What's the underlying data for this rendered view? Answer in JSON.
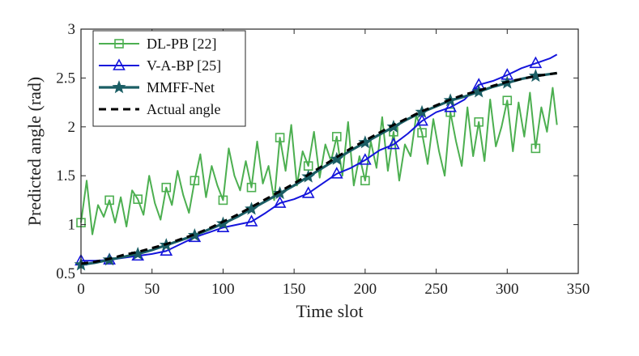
{
  "chart_data": {
    "type": "line",
    "title": "",
    "xlabel": "Time slot",
    "ylabel": "Predicted angle (rad)",
    "xlim": [
      0,
      350
    ],
    "ylim": [
      0.5,
      3
    ],
    "xticks": [
      0,
      50,
      100,
      150,
      200,
      250,
      300,
      350
    ],
    "yticks": [
      0.5,
      1,
      1.5,
      2,
      2.5,
      3
    ],
    "xtick_labels": [
      "0",
      "50",
      "100",
      "150",
      "200",
      "250",
      "300",
      "350"
    ],
    "ytick_labels": [
      "0.5",
      "1",
      "1.5",
      "2",
      "2.5",
      "3"
    ],
    "grid": false,
    "legend_position": "top-left",
    "series": [
      {
        "name": "DL-PB [22]",
        "color": "#4caf50",
        "marker": "square",
        "x": [
          0,
          4,
          8,
          12,
          16,
          20,
          24,
          28,
          32,
          36,
          40,
          44,
          48,
          52,
          56,
          60,
          64,
          68,
          72,
          76,
          80,
          84,
          88,
          92,
          96,
          100,
          104,
          108,
          112,
          116,
          120,
          124,
          128,
          132,
          136,
          140,
          144,
          148,
          152,
          156,
          160,
          164,
          168,
          172,
          176,
          180,
          184,
          188,
          192,
          196,
          200,
          204,
          208,
          212,
          216,
          220,
          224,
          228,
          232,
          236,
          240,
          244,
          248,
          252,
          256,
          260,
          264,
          268,
          272,
          276,
          280,
          284,
          288,
          292,
          296,
          300,
          304,
          308,
          312,
          316,
          320,
          324,
          328,
          332,
          335
        ],
        "values": [
          1.02,
          1.45,
          0.9,
          1.2,
          1.08,
          1.25,
          1.02,
          1.28,
          0.98,
          1.35,
          1.26,
          1.1,
          1.5,
          1.22,
          1.05,
          1.38,
          1.2,
          1.55,
          1.3,
          1.12,
          1.45,
          1.72,
          1.28,
          1.6,
          1.4,
          1.25,
          1.78,
          1.5,
          1.35,
          1.65,
          1.38,
          1.85,
          1.42,
          1.6,
          1.25,
          1.89,
          1.55,
          2.02,
          1.4,
          1.75,
          1.6,
          1.95,
          1.48,
          1.82,
          1.65,
          1.9,
          1.5,
          2.05,
          1.4,
          1.7,
          1.45,
          1.85,
          1.58,
          2.1,
          1.55,
          1.95,
          1.45,
          1.82,
          1.7,
          2.12,
          1.94,
          1.62,
          2.08,
          1.75,
          1.5,
          2.15,
          1.85,
          1.6,
          2.2,
          1.7,
          2.05,
          1.65,
          2.28,
          1.8,
          2.0,
          2.27,
          1.75,
          2.25,
          1.9,
          2.35,
          1.78,
          2.2,
          1.95,
          2.4,
          2.02
        ]
      },
      {
        "name": "V-A-BP [25]",
        "color": "#1414dc",
        "marker": "triangle",
        "x": [
          0,
          10,
          20,
          30,
          40,
          50,
          60,
          70,
          80,
          90,
          100,
          110,
          120,
          130,
          140,
          150,
          160,
          170,
          180,
          190,
          200,
          210,
          220,
          230,
          240,
          250,
          260,
          270,
          280,
          290,
          300,
          310,
          320,
          330,
          335
        ],
        "values": [
          0.63,
          0.63,
          0.64,
          0.66,
          0.68,
          0.7,
          0.73,
          0.8,
          0.87,
          0.92,
          0.97,
          1.0,
          1.03,
          1.12,
          1.22,
          1.26,
          1.32,
          1.42,
          1.52,
          1.58,
          1.66,
          1.76,
          1.82,
          1.93,
          2.06,
          2.15,
          2.2,
          2.28,
          2.43,
          2.47,
          2.53,
          2.6,
          2.65,
          2.7,
          2.74
        ]
      },
      {
        "name": "MMFF-Net",
        "color": "#1b5e65",
        "marker": "star",
        "x": [
          0,
          10,
          20,
          30,
          40,
          50,
          60,
          70,
          80,
          90,
          100,
          110,
          120,
          130,
          140,
          150,
          160,
          170,
          180,
          190,
          200,
          210,
          220,
          230,
          240,
          250,
          260,
          270,
          280,
          290,
          300,
          310,
          320,
          330,
          335
        ],
        "values": [
          0.59,
          0.61,
          0.64,
          0.67,
          0.7,
          0.74,
          0.79,
          0.84,
          0.89,
          0.95,
          1.01,
          1.08,
          1.16,
          1.24,
          1.32,
          1.4,
          1.49,
          1.58,
          1.67,
          1.76,
          1.84,
          1.92,
          2.0,
          2.08,
          2.15,
          2.21,
          2.27,
          2.31,
          2.36,
          2.41,
          2.45,
          2.49,
          2.52,
          2.54,
          2.55
        ]
      },
      {
        "name": "Actual angle",
        "color": "#000000",
        "marker": "none",
        "x": [
          0,
          10,
          20,
          30,
          40,
          50,
          60,
          70,
          80,
          90,
          100,
          110,
          120,
          130,
          140,
          150,
          160,
          170,
          180,
          190,
          200,
          210,
          220,
          230,
          240,
          250,
          260,
          270,
          280,
          290,
          300,
          310,
          320,
          330,
          335
        ],
        "values": [
          0.6,
          0.62,
          0.65,
          0.69,
          0.72,
          0.76,
          0.8,
          0.85,
          0.9,
          0.96,
          1.03,
          1.1,
          1.18,
          1.26,
          1.34,
          1.42,
          1.51,
          1.6,
          1.69,
          1.78,
          1.86,
          1.94,
          2.02,
          2.09,
          2.16,
          2.22,
          2.28,
          2.33,
          2.37,
          2.42,
          2.46,
          2.49,
          2.52,
          2.54,
          2.55
        ]
      }
    ]
  }
}
